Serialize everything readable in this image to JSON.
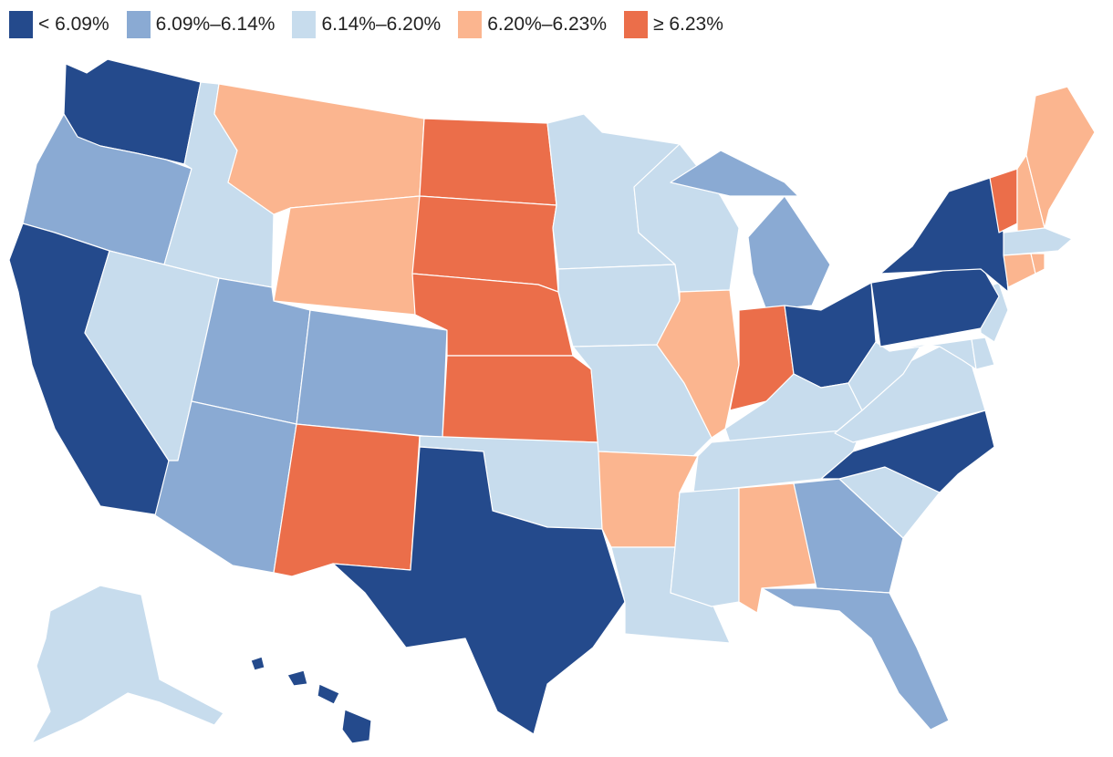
{
  "legend": {
    "items": [
      {
        "label": "< 6.09%",
        "color": "#244a8c"
      },
      {
        "label": "6.09%–6.14%",
        "color": "#8aaad3"
      },
      {
        "label": "6.14%–6.20%",
        "color": "#c7dced"
      },
      {
        "label": "6.20%–6.23%",
        "color": "#fbb58f"
      },
      {
        "label": "≥ 6.23%",
        "color": "#eb6e4a"
      }
    ]
  },
  "states": {
    "WA": 0,
    "OR": 1,
    "CA": 0,
    "NV": 2,
    "ID": 2,
    "MT": 3,
    "WY": 3,
    "UT": 1,
    "AZ": 1,
    "CO": 1,
    "NM": 4,
    "ND": 4,
    "SD": 4,
    "NE": 4,
    "KS": 4,
    "OK": 2,
    "TX": 0,
    "MN": 2,
    "IA": 2,
    "MO": 2,
    "AR": 3,
    "LA": 2,
    "WI": 2,
    "IL": 3,
    "MI": 1,
    "IN": 4,
    "OH": 0,
    "KY": 2,
    "TN": 2,
    "MS": 2,
    "AL": 3,
    "GA": 1,
    "FL": 1,
    "SC": 2,
    "NC": 0,
    "VA": 2,
    "WV": 2,
    "MD": 2,
    "DE": 2,
    "NJ": 2,
    "PA": 0,
    "NY": 0,
    "VT": 4,
    "NH": 3,
    "ME": 3,
    "MA": 2,
    "CT": 3,
    "RI": 3,
    "AK": 2,
    "HI": 0
  }
}
